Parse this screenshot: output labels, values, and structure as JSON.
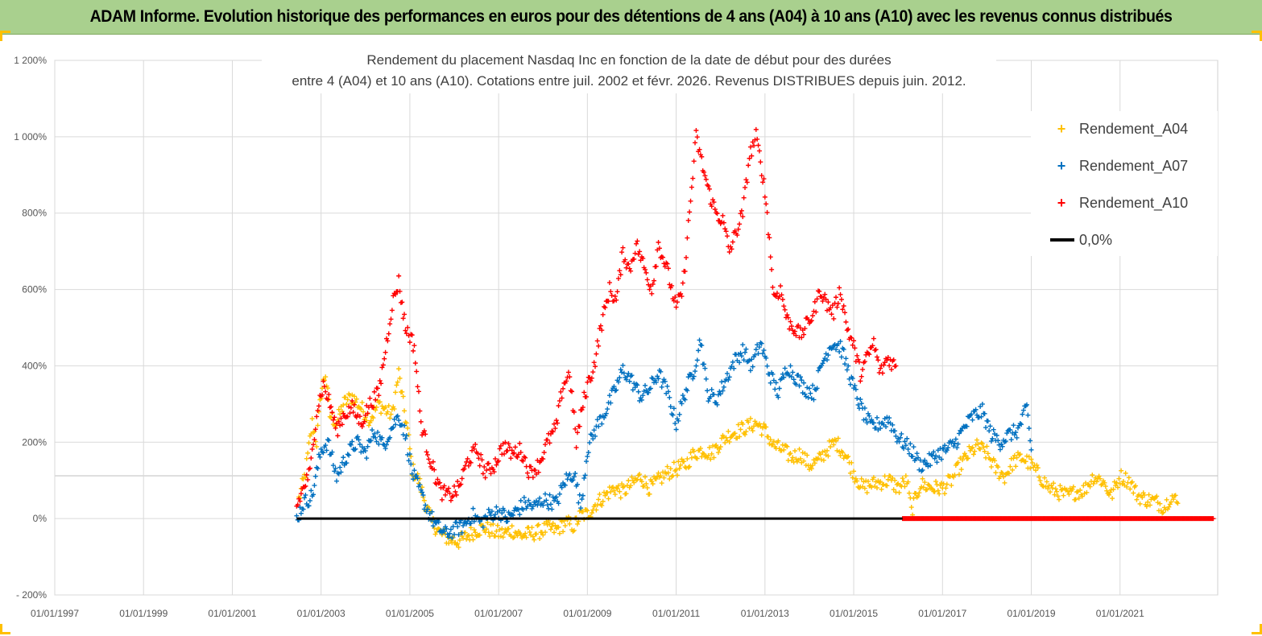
{
  "header": {
    "banner": "ADAM Informe. Evolution historique des performances en euros pour des détentions de 4 ans (A04) à 10 ans (A10) avec les revenus connus distribués"
  },
  "chart_data": {
    "type": "scatter",
    "title_line1": "Rendement du placement Nasdaq Inc en fonction de la date de début pour des durées",
    "title_line2": "entre 4 (A04) et 10 ans (A10).  Cotations entre juil. 2002 et févr. 2026. Revenus DISTRIBUES depuis juin. 2012.",
    "x_axis": {
      "unit": "year",
      "range": [
        1997,
        2023.2
      ],
      "tick_values": [
        1997,
        1999,
        2001,
        2003,
        2005,
        2007,
        2009,
        2011,
        2013,
        2015,
        2017,
        2019,
        2021
      ],
      "tick_labels": [
        "01/01/1997",
        "01/01/1999",
        "01/01/2001",
        "01/01/2003",
        "01/01/2005",
        "01/01/2007",
        "01/01/2009",
        "01/01/2011",
        "01/01/2013",
        "01/01/2015",
        "01/01/2017",
        "01/01/2019",
        "01/01/2021"
      ]
    },
    "y_axis": {
      "unit": "percent",
      "range": [
        -200,
        1200
      ],
      "tick_values": [
        -200,
        0,
        200,
        400,
        600,
        800,
        1000,
        1200
      ],
      "tick_labels": [
        "- 200%",
        "0%",
        "200%",
        "400%",
        "600%",
        "800%",
        "1 000%",
        "1 200%"
      ],
      "grid": true
    },
    "legend": {
      "position": "top-right",
      "entries": [
        {
          "label": "Rendement_A04",
          "marker": "+",
          "color": "#ffc000"
        },
        {
          "label": "Rendement_A07",
          "marker": "+",
          "color": "#0070c0"
        },
        {
          "label": "Rendement_A10",
          "marker": "+",
          "color": "#ff0000"
        },
        {
          "label": "0,0%",
          "marker": "line",
          "color": "#000000"
        }
      ]
    },
    "series": [
      {
        "name": "Rendement_A04",
        "color": "#ffc000",
        "points": [
          [
            2002.5,
            50
          ],
          [
            2002.65,
            120
          ],
          [
            2002.8,
            250
          ],
          [
            2002.9,
            200
          ],
          [
            2003.0,
            330
          ],
          [
            2003.1,
            380
          ],
          [
            2003.2,
            270
          ],
          [
            2003.35,
            250
          ],
          [
            2003.5,
            300
          ],
          [
            2003.7,
            320
          ],
          [
            2003.9,
            290
          ],
          [
            2004.1,
            260
          ],
          [
            2004.3,
            300
          ],
          [
            2004.5,
            280
          ],
          [
            2004.6,
            270
          ],
          [
            2004.75,
            380
          ],
          [
            2004.85,
            300
          ],
          [
            2004.95,
            230
          ],
          [
            2005.05,
            130
          ],
          [
            2005.2,
            100
          ],
          [
            2005.35,
            40
          ],
          [
            2005.5,
            -10
          ],
          [
            2005.7,
            -40
          ],
          [
            2005.9,
            -55
          ],
          [
            2006.1,
            -60
          ],
          [
            2006.3,
            -45
          ],
          [
            2006.5,
            -30
          ],
          [
            2006.7,
            -25
          ],
          [
            2006.9,
            -35
          ],
          [
            2007.1,
            -40
          ],
          [
            2007.3,
            -30
          ],
          [
            2007.5,
            -45
          ],
          [
            2007.7,
            -40
          ],
          [
            2007.9,
            -35
          ],
          [
            2008.1,
            -25
          ],
          [
            2008.3,
            -30
          ],
          [
            2008.5,
            -10
          ],
          [
            2008.7,
            -20
          ],
          [
            2008.85,
            10
          ],
          [
            2009.0,
            10
          ],
          [
            2009.2,
            40
          ],
          [
            2009.4,
            60
          ],
          [
            2009.6,
            80
          ],
          [
            2009.8,
            70
          ],
          [
            2010.0,
            90
          ],
          [
            2010.2,
            110
          ],
          [
            2010.4,
            80
          ],
          [
            2010.6,
            100
          ],
          [
            2010.8,
            120
          ],
          [
            2011.0,
            130
          ],
          [
            2011.2,
            140
          ],
          [
            2011.4,
            170
          ],
          [
            2011.6,
            180
          ],
          [
            2011.8,
            170
          ],
          [
            2012.0,
            200
          ],
          [
            2012.2,
            220
          ],
          [
            2012.4,
            230
          ],
          [
            2012.6,
            240
          ],
          [
            2012.8,
            250
          ],
          [
            2013.0,
            230
          ],
          [
            2013.2,
            190
          ],
          [
            2013.4,
            180
          ],
          [
            2013.6,
            160
          ],
          [
            2013.8,
            170
          ],
          [
            2014.0,
            140
          ],
          [
            2014.2,
            150
          ],
          [
            2014.4,
            180
          ],
          [
            2014.6,
            200
          ],
          [
            2014.8,
            170
          ],
          [
            2015.0,
            120
          ],
          [
            2015.2,
            80
          ],
          [
            2015.4,
            90
          ],
          [
            2015.6,
            95
          ],
          [
            2015.8,
            100
          ],
          [
            2016.0,
            80
          ],
          [
            2016.2,
            100
          ],
          [
            2016.3,
            20
          ],
          [
            2016.5,
            90
          ],
          [
            2016.8,
            80
          ],
          [
            2017.0,
            80
          ],
          [
            2017.2,
            100
          ],
          [
            2017.4,
            140
          ],
          [
            2017.6,
            170
          ],
          [
            2017.8,
            190
          ],
          [
            2018.0,
            170
          ],
          [
            2018.2,
            130
          ],
          [
            2018.4,
            110
          ],
          [
            2018.6,
            150
          ],
          [
            2018.8,
            160
          ],
          [
            2019.0,
            140
          ],
          [
            2019.2,
            110
          ],
          [
            2019.4,
            80
          ],
          [
            2019.6,
            70
          ],
          [
            2019.8,
            60
          ],
          [
            2020.0,
            70
          ],
          [
            2020.2,
            75
          ],
          [
            2020.4,
            110
          ],
          [
            2020.6,
            100
          ],
          [
            2020.8,
            60
          ],
          [
            2021.0,
            110
          ],
          [
            2021.2,
            100
          ],
          [
            2021.4,
            60
          ],
          [
            2021.6,
            50
          ],
          [
            2021.8,
            45
          ],
          [
            2022.0,
            30
          ],
          [
            2022.15,
            60
          ],
          [
            2022.3,
            40
          ]
        ]
      },
      {
        "name": "Rendement_A07",
        "color": "#0070c0",
        "points": [
          [
            2002.45,
            0
          ],
          [
            2002.6,
            40
          ],
          [
            2002.8,
            60
          ],
          [
            2003.0,
            180
          ],
          [
            2003.15,
            200
          ],
          [
            2003.35,
            110
          ],
          [
            2003.6,
            170
          ],
          [
            2003.8,
            200
          ],
          [
            2004.0,
            170
          ],
          [
            2004.2,
            230
          ],
          [
            2004.4,
            190
          ],
          [
            2004.6,
            240
          ],
          [
            2004.75,
            270
          ],
          [
            2004.9,
            220
          ],
          [
            2005.05,
            120
          ],
          [
            2005.2,
            80
          ],
          [
            2005.4,
            20
          ],
          [
            2005.6,
            -20
          ],
          [
            2005.8,
            -40
          ],
          [
            2006.0,
            -30
          ],
          [
            2006.2,
            -20
          ],
          [
            2006.4,
            10
          ],
          [
            2006.6,
            -10
          ],
          [
            2006.8,
            10
          ],
          [
            2007.0,
            20
          ],
          [
            2007.2,
            0
          ],
          [
            2007.4,
            20
          ],
          [
            2007.6,
            40
          ],
          [
            2007.8,
            30
          ],
          [
            2008.0,
            50
          ],
          [
            2008.3,
            40
          ],
          [
            2008.5,
            100
          ],
          [
            2008.7,
            120
          ],
          [
            2008.85,
            30
          ],
          [
            2009.0,
            180
          ],
          [
            2009.2,
            240
          ],
          [
            2009.4,
            280
          ],
          [
            2009.6,
            330
          ],
          [
            2009.8,
            390
          ],
          [
            2010.0,
            360
          ],
          [
            2010.2,
            320
          ],
          [
            2010.4,
            340
          ],
          [
            2010.6,
            380
          ],
          [
            2010.8,
            330
          ],
          [
            2011.0,
            250
          ],
          [
            2011.2,
            330
          ],
          [
            2011.4,
            390
          ],
          [
            2011.55,
            470
          ],
          [
            2011.7,
            330
          ],
          [
            2011.9,
            310
          ],
          [
            2012.1,
            360
          ],
          [
            2012.3,
            410
          ],
          [
            2012.5,
            440
          ],
          [
            2012.7,
            400
          ],
          [
            2012.9,
            460
          ],
          [
            2013.1,
            380
          ],
          [
            2013.3,
            330
          ],
          [
            2013.5,
            400
          ],
          [
            2013.7,
            370
          ],
          [
            2013.9,
            340
          ],
          [
            2014.1,
            330
          ],
          [
            2014.3,
            410
          ],
          [
            2014.5,
            460
          ],
          [
            2014.7,
            450
          ],
          [
            2014.9,
            380
          ],
          [
            2015.0,
            340
          ],
          [
            2015.2,
            280
          ],
          [
            2015.4,
            240
          ],
          [
            2015.6,
            250
          ],
          [
            2015.8,
            260
          ],
          [
            2015.95,
            220
          ],
          [
            2016.1,
            200
          ],
          [
            2016.3,
            180
          ],
          [
            2016.5,
            140
          ],
          [
            2016.7,
            150
          ],
          [
            2016.9,
            170
          ],
          [
            2017.1,
            180
          ],
          [
            2017.3,
            200
          ],
          [
            2017.5,
            240
          ],
          [
            2017.7,
            270
          ],
          [
            2017.9,
            280
          ],
          [
            2018.1,
            220
          ],
          [
            2018.3,
            200
          ],
          [
            2018.5,
            220
          ],
          [
            2018.7,
            230
          ],
          [
            2018.9,
            290
          ],
          [
            2019.0,
            180
          ]
        ]
      },
      {
        "name": "Rendement_A10",
        "color": "#ff0000",
        "points": [
          [
            2002.45,
            30
          ],
          [
            2002.6,
            80
          ],
          [
            2002.75,
            120
          ],
          [
            2002.9,
            280
          ],
          [
            2003.05,
            350
          ],
          [
            2003.2,
            300
          ],
          [
            2003.35,
            230
          ],
          [
            2003.5,
            270
          ],
          [
            2003.7,
            290
          ],
          [
            2003.9,
            250
          ],
          [
            2004.1,
            300
          ],
          [
            2004.3,
            330
          ],
          [
            2004.5,
            480
          ],
          [
            2004.6,
            560
          ],
          [
            2004.75,
            620
          ],
          [
            2004.9,
            500
          ],
          [
            2005.0,
            480
          ],
          [
            2005.1,
            450
          ],
          [
            2005.25,
            250
          ],
          [
            2005.4,
            180
          ],
          [
            2005.55,
            120
          ],
          [
            2005.7,
            70
          ],
          [
            2005.9,
            60
          ],
          [
            2006.1,
            80
          ],
          [
            2006.3,
            150
          ],
          [
            2006.5,
            180
          ],
          [
            2006.7,
            120
          ],
          [
            2006.9,
            140
          ],
          [
            2007.1,
            190
          ],
          [
            2007.3,
            170
          ],
          [
            2007.5,
            180
          ],
          [
            2007.7,
            120
          ],
          [
            2007.9,
            140
          ],
          [
            2008.1,
            200
          ],
          [
            2008.3,
            240
          ],
          [
            2008.45,
            350
          ],
          [
            2008.6,
            380
          ],
          [
            2008.75,
            200
          ],
          [
            2008.9,
            300
          ],
          [
            2009.0,
            350
          ],
          [
            2009.15,
            400
          ],
          [
            2009.3,
            500
          ],
          [
            2009.5,
            600
          ],
          [
            2009.65,
            570
          ],
          [
            2009.8,
            700
          ],
          [
            2009.95,
            650
          ],
          [
            2010.1,
            720
          ],
          [
            2010.3,
            650
          ],
          [
            2010.45,
            600
          ],
          [
            2010.6,
            720
          ],
          [
            2010.8,
            650
          ],
          [
            2011.0,
            550
          ],
          [
            2011.15,
            600
          ],
          [
            2011.3,
            800
          ],
          [
            2011.45,
            1000
          ],
          [
            2011.6,
            920
          ],
          [
            2011.75,
            850
          ],
          [
            2011.9,
            800
          ],
          [
            2012.05,
            780
          ],
          [
            2012.2,
            700
          ],
          [
            2012.35,
            750
          ],
          [
            2012.5,
            800
          ],
          [
            2012.65,
            950
          ],
          [
            2012.8,
            1000
          ],
          [
            2012.95,
            900
          ],
          [
            2013.05,
            800
          ],
          [
            2013.2,
            580
          ],
          [
            2013.35,
            600
          ],
          [
            2013.5,
            520
          ],
          [
            2013.65,
            500
          ],
          [
            2013.8,
            480
          ],
          [
            2013.95,
            510
          ],
          [
            2014.1,
            540
          ],
          [
            2014.25,
            600
          ],
          [
            2014.4,
            560
          ],
          [
            2014.55,
            540
          ],
          [
            2014.7,
            600
          ],
          [
            2014.85,
            500
          ],
          [
            2015.0,
            450
          ],
          [
            2015.15,
            380
          ],
          [
            2015.3,
            420
          ],
          [
            2015.45,
            460
          ],
          [
            2015.6,
            380
          ],
          [
            2015.75,
            420
          ],
          [
            2015.95,
            400
          ]
        ]
      },
      {
        "name": "zero_line_points",
        "color": "#ff0000",
        "points": [
          [
            2016.1,
            0
          ],
          [
            2023.1,
            0
          ]
        ]
      }
    ],
    "reference_line": {
      "label": "0,0%",
      "y": 0,
      "x_range": [
        2002.45,
        2016.1
      ],
      "color": "#000000"
    }
  }
}
